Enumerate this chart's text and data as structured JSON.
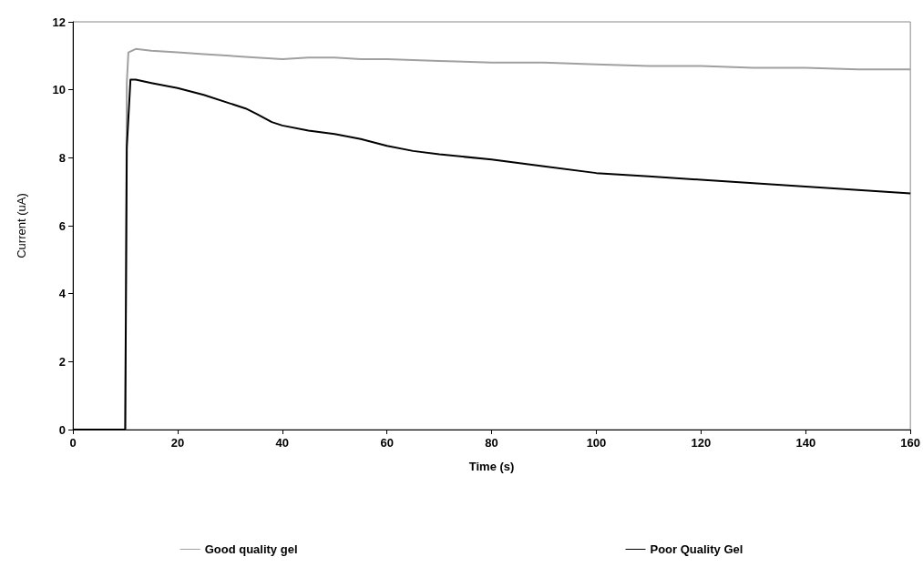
{
  "chart_data": {
    "type": "line",
    "xlabel": "Time (s)",
    "ylabel": "Current (uA)",
    "xlim": [
      0,
      160
    ],
    "xticks": [
      0,
      20,
      40,
      60,
      80,
      100,
      120,
      140,
      160
    ],
    "ylim": [
      0,
      12
    ],
    "yticks": [
      0,
      2,
      4,
      6,
      8,
      10,
      12
    ],
    "grid": false,
    "legend": "bottom",
    "marker": "none",
    "line_style": "solid",
    "series": [
      {
        "name": "Good quality gel",
        "color": "#a0a0a0",
        "x": [
          0,
          10,
          10.3,
          10.6,
          12,
          15,
          20,
          25,
          30,
          35,
          40,
          45,
          50,
          55,
          60,
          70,
          80,
          90,
          100,
          110,
          120,
          130,
          140,
          150,
          160
        ],
        "values": [
          0,
          0,
          10.2,
          11.1,
          11.2,
          11.15,
          11.1,
          11.05,
          11.0,
          10.95,
          10.9,
          10.95,
          10.95,
          10.9,
          10.9,
          10.85,
          10.8,
          10.8,
          10.75,
          10.7,
          10.7,
          10.65,
          10.65,
          10.6,
          10.6
        ]
      },
      {
        "name": "Poor Quality Gel",
        "color": "#000000",
        "x": [
          0,
          10,
          10.3,
          11,
          12,
          15,
          20,
          25,
          30,
          33,
          35,
          38,
          40,
          45,
          50,
          55,
          60,
          65,
          70,
          80,
          90,
          100,
          110,
          120,
          130,
          140,
          150,
          160
        ],
        "values": [
          0,
          0,
          8.3,
          10.3,
          10.3,
          10.2,
          10.05,
          9.85,
          9.6,
          9.45,
          9.3,
          9.05,
          8.95,
          8.8,
          8.7,
          8.55,
          8.35,
          8.2,
          8.1,
          7.95,
          7.75,
          7.55,
          7.45,
          7.35,
          7.25,
          7.15,
          7.05,
          6.95
        ]
      }
    ]
  }
}
